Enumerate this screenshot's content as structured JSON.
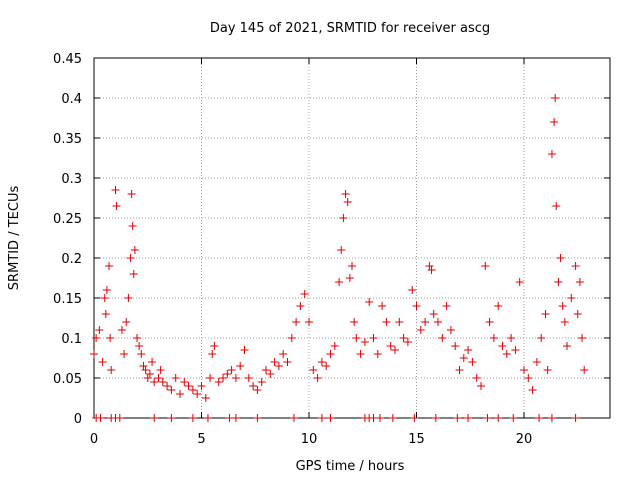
{
  "chart_data": {
    "type": "scatter",
    "title": "Day 145 of 2021, SRMTID for receiver ascg",
    "xlabel": "GPS time / hours",
    "ylabel": "SRMTID / TECUs",
    "xlim": [
      0,
      24
    ],
    "ylim": [
      0,
      0.45
    ],
    "x_ticks": [
      0,
      5,
      10,
      15,
      20
    ],
    "x_tick_labels": [
      "0",
      "5",
      "10",
      "15",
      "20"
    ],
    "y_ticks": [
      0,
      0.05,
      0.1,
      0.15,
      0.2,
      0.25,
      0.3,
      0.35,
      0.4,
      0.45
    ],
    "y_tick_labels": [
      "0",
      "0.05",
      "0.1",
      "0.15",
      "0.2",
      "0.25",
      "0.3",
      "0.35",
      "0.4",
      "0.45"
    ],
    "grid": true,
    "marker": "plus",
    "color": "#e00000",
    "series": [
      {
        "name": "SRMTID",
        "points": [
          [
            0.0,
            0.08
          ],
          [
            0.1,
            0.1
          ],
          [
            0.25,
            0.11
          ],
          [
            0.4,
            0.07
          ],
          [
            0.5,
            0.15
          ],
          [
            0.55,
            0.13
          ],
          [
            0.6,
            0.16
          ],
          [
            0.7,
            0.19
          ],
          [
            0.75,
            0.1
          ],
          [
            0.8,
            0.06
          ],
          [
            1.0,
            0.285
          ],
          [
            1.05,
            0.265
          ],
          [
            1.3,
            0.11
          ],
          [
            1.4,
            0.08
          ],
          [
            1.5,
            0.12
          ],
          [
            1.6,
            0.15
          ],
          [
            1.7,
            0.2
          ],
          [
            1.75,
            0.28
          ],
          [
            1.8,
            0.24
          ],
          [
            1.85,
            0.18
          ],
          [
            1.9,
            0.21
          ],
          [
            2.0,
            0.1
          ],
          [
            2.1,
            0.09
          ],
          [
            2.2,
            0.08
          ],
          [
            2.3,
            0.065
          ],
          [
            2.4,
            0.06
          ],
          [
            2.5,
            0.05
          ],
          [
            2.6,
            0.055
          ],
          [
            2.7,
            0.07
          ],
          [
            2.8,
            0.045
          ],
          [
            3.0,
            0.05
          ],
          [
            3.1,
            0.06
          ],
          [
            3.2,
            0.045
          ],
          [
            3.4,
            0.04
          ],
          [
            3.6,
            0.035
          ],
          [
            3.8,
            0.05
          ],
          [
            4.0,
            0.03
          ],
          [
            4.2,
            0.045
          ],
          [
            4.4,
            0.04
          ],
          [
            4.6,
            0.035
          ],
          [
            4.8,
            0.03
          ],
          [
            5.0,
            0.04
          ],
          [
            5.2,
            0.025
          ],
          [
            5.4,
            0.05
          ],
          [
            5.5,
            0.08
          ],
          [
            5.6,
            0.09
          ],
          [
            5.8,
            0.045
          ],
          [
            6.0,
            0.05
          ],
          [
            6.2,
            0.055
          ],
          [
            6.4,
            0.06
          ],
          [
            6.6,
            0.05
          ],
          [
            6.8,
            0.065
          ],
          [
            7.0,
            0.085
          ],
          [
            7.2,
            0.05
          ],
          [
            7.4,
            0.04
          ],
          [
            7.6,
            0.035
          ],
          [
            7.8,
            0.045
          ],
          [
            8.0,
            0.06
          ],
          [
            8.2,
            0.055
          ],
          [
            8.4,
            0.07
          ],
          [
            8.6,
            0.065
          ],
          [
            8.8,
            0.08
          ],
          [
            9.0,
            0.07
          ],
          [
            9.2,
            0.1
          ],
          [
            9.4,
            0.12
          ],
          [
            9.6,
            0.14
          ],
          [
            9.8,
            0.155
          ],
          [
            10.0,
            0.12
          ],
          [
            10.2,
            0.06
          ],
          [
            10.4,
            0.05
          ],
          [
            10.6,
            0.07
          ],
          [
            10.8,
            0.065
          ],
          [
            11.0,
            0.08
          ],
          [
            11.2,
            0.09
          ],
          [
            11.4,
            0.17
          ],
          [
            11.5,
            0.21
          ],
          [
            11.6,
            0.25
          ],
          [
            11.7,
            0.28
          ],
          [
            11.8,
            0.27
          ],
          [
            11.9,
            0.175
          ],
          [
            12.0,
            0.19
          ],
          [
            12.1,
            0.12
          ],
          [
            12.2,
            0.1
          ],
          [
            12.4,
            0.08
          ],
          [
            12.6,
            0.095
          ],
          [
            12.8,
            0.145
          ],
          [
            13.0,
            0.1
          ],
          [
            13.2,
            0.08
          ],
          [
            13.4,
            0.14
          ],
          [
            13.6,
            0.12
          ],
          [
            13.8,
            0.09
          ],
          [
            14.0,
            0.085
          ],
          [
            14.2,
            0.12
          ],
          [
            14.4,
            0.1
          ],
          [
            14.6,
            0.095
          ],
          [
            14.8,
            0.16
          ],
          [
            15.0,
            0.14
          ],
          [
            15.2,
            0.11
          ],
          [
            15.4,
            0.12
          ],
          [
            15.6,
            0.19
          ],
          [
            15.7,
            0.185
          ],
          [
            15.8,
            0.13
          ],
          [
            16.0,
            0.12
          ],
          [
            16.2,
            0.1
          ],
          [
            16.4,
            0.14
          ],
          [
            16.6,
            0.11
          ],
          [
            16.8,
            0.09
          ],
          [
            17.0,
            0.06
          ],
          [
            17.2,
            0.075
          ],
          [
            17.4,
            0.085
          ],
          [
            17.6,
            0.07
          ],
          [
            17.8,
            0.05
          ],
          [
            18.0,
            0.04
          ],
          [
            18.2,
            0.19
          ],
          [
            18.4,
            0.12
          ],
          [
            18.6,
            0.1
          ],
          [
            18.8,
            0.14
          ],
          [
            19.0,
            0.09
          ],
          [
            19.2,
            0.08
          ],
          [
            19.4,
            0.1
          ],
          [
            19.6,
            0.085
          ],
          [
            19.8,
            0.17
          ],
          [
            20.0,
            0.06
          ],
          [
            20.2,
            0.05
          ],
          [
            20.4,
            0.035
          ],
          [
            20.6,
            0.07
          ],
          [
            20.8,
            0.1
          ],
          [
            21.0,
            0.13
          ],
          [
            21.1,
            0.06
          ],
          [
            21.3,
            0.33
          ],
          [
            21.4,
            0.37
          ],
          [
            21.45,
            0.4
          ],
          [
            21.5,
            0.265
          ],
          [
            21.6,
            0.17
          ],
          [
            21.7,
            0.2
          ],
          [
            21.8,
            0.14
          ],
          [
            21.9,
            0.12
          ],
          [
            22.0,
            0.09
          ],
          [
            22.2,
            0.15
          ],
          [
            22.4,
            0.19
          ],
          [
            22.5,
            0.13
          ],
          [
            22.6,
            0.17
          ],
          [
            22.7,
            0.1
          ],
          [
            22.8,
            0.06
          ]
        ]
      }
    ],
    "zero_band_points": [
      0.1,
      0.3,
      0.8,
      1.0,
      1.2,
      2.8,
      3.6,
      4.6,
      5.3,
      6.3,
      6.6,
      7.6,
      9.3,
      10.6,
      11.0,
      12.6,
      12.8,
      13.0,
      13.3,
      13.9,
      14.9,
      15.9,
      16.9,
      17.4,
      18.3,
      18.8,
      19.5,
      20.7,
      21.3,
      22.4
    ]
  }
}
